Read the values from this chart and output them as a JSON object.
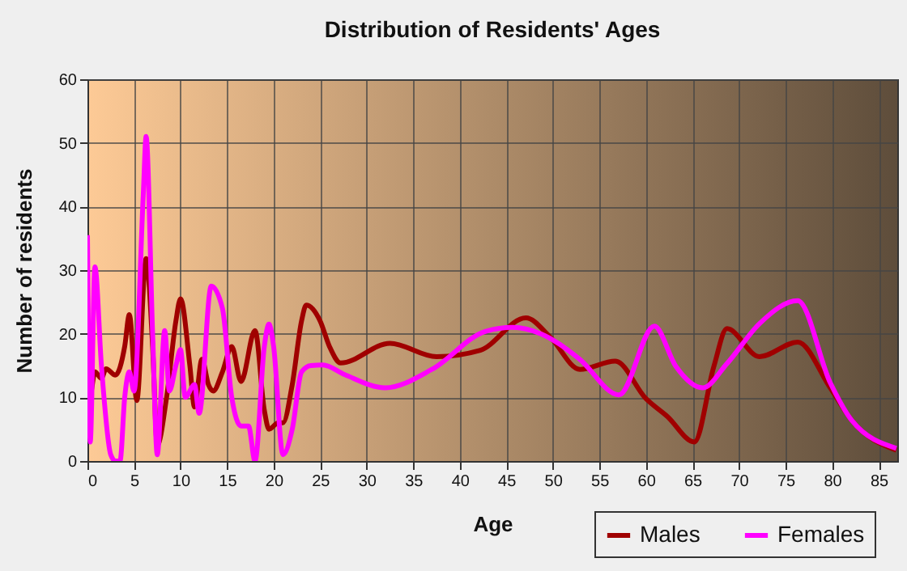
{
  "chart_data": {
    "type": "line",
    "title": "Distribution of Residents' Ages",
    "xlabel": "Age",
    "ylabel": "Number of residents",
    "xlim": [
      0,
      87
    ],
    "xticks": [
      0,
      5,
      10,
      15,
      20,
      25,
      30,
      35,
      40,
      45,
      50,
      55,
      60,
      65,
      70,
      75,
      80,
      85
    ],
    "ylim": [
      0,
      60
    ],
    "yticks": [
      0,
      10,
      20,
      30,
      40,
      50,
      60
    ],
    "grid": true,
    "legend": "bottom right",
    "series": [
      {
        "name": "Males",
        "color": "#a00000",
        "x": [
          0,
          0.3,
          0.8,
          1.5,
          2,
          3,
          4,
          4.5,
          5.3,
          6.3,
          7,
          7.5,
          8.5,
          9.5,
          10,
          11,
          11.5,
          12.3,
          13,
          13.5,
          14.5,
          15.5,
          16.5,
          18,
          19,
          19.5,
          20.5,
          21,
          22,
          23,
          23.5,
          25,
          26,
          27.2,
          32.5,
          37.5,
          42.2,
          47.1,
          49.7,
          52.9,
          56.7,
          60,
          62.3,
          65.2,
          67.3,
          68.7,
          72.2,
          76.3,
          79.8,
          82.1,
          86.9
        ],
        "values": [
          14,
          10.5,
          14,
          13,
          14.5,
          13.5,
          18,
          23,
          9.5,
          31.8,
          18,
          2.5,
          10,
          22,
          25.5,
          15,
          8.5,
          16,
          12,
          11,
          14,
          18,
          12.5,
          20.5,
          8,
          5,
          6,
          6,
          12,
          22,
          24.5,
          22,
          18,
          15.4,
          18.5,
          16.4,
          17.4,
          22.5,
          19.5,
          14.4,
          15.7,
          9.8,
          7,
          3,
          14.9,
          20.8,
          16.4,
          18.7,
          11.5,
          6.4,
          1.7
        ]
      },
      {
        "name": "Females",
        "color": "#ff00ff",
        "x": [
          0,
          0.3,
          0.8,
          1.5,
          2.5,
          3,
          3.5,
          4,
          4.5,
          5,
          6,
          6.3,
          7,
          7.5,
          8.3,
          8.8,
          9.5,
          10,
          10.5,
          11.5,
          12,
          13.3,
          14.5,
          15.5,
          16.5,
          17.3,
          18,
          19,
          19.5,
          20,
          21,
          22,
          23,
          24,
          25.3,
          27.6,
          32,
          37,
          42.8,
          45.7,
          48.7,
          52.8,
          57.1,
          60.9,
          63.2,
          66.1,
          68.7,
          72.2,
          76.3,
          79.8,
          82.1,
          86.9
        ],
        "values": [
          35.5,
          3,
          30.5,
          15,
          1,
          0,
          0,
          10,
          14,
          11,
          42,
          51,
          20,
          1,
          20.5,
          11,
          15,
          17.5,
          10,
          12,
          7.5,
          27.5,
          24,
          10,
          5.5,
          5.5,
          0,
          18,
          21.5,
          18,
          1,
          5,
          14,
          15,
          15.1,
          13.6,
          11.5,
          14.4,
          20.4,
          21,
          20,
          16.1,
          10.4,
          21.2,
          14.9,
          11.5,
          15.3,
          21.6,
          25.2,
          12.3,
          6.4,
          2
        ]
      }
    ]
  }
}
